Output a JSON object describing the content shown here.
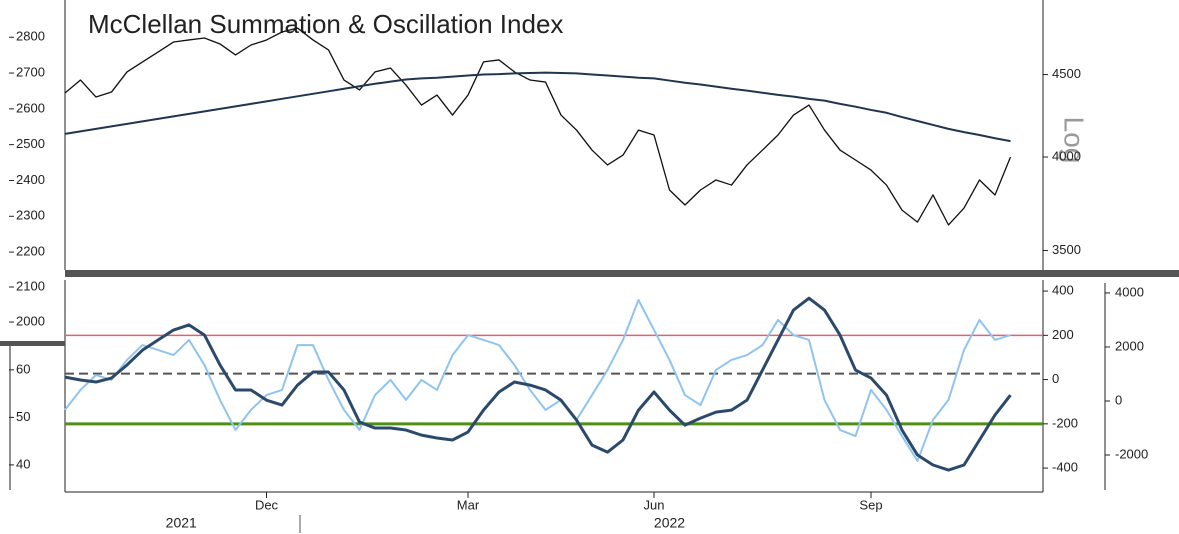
{
  "chart_data": {
    "type": "line",
    "title": "McClellan Summation & Oscillation Index",
    "categories": [
      null,
      null,
      null,
      null,
      null,
      null,
      null,
      null,
      null,
      null,
      null,
      null,
      null,
      "Dec",
      null,
      null,
      null,
      null,
      null,
      null,
      null,
      null,
      null,
      null,
      null,
      null,
      "Mar",
      null,
      null,
      null,
      null,
      null,
      null,
      null,
      null,
      null,
      null,
      null,
      "Jun",
      null,
      null,
      null,
      null,
      null,
      null,
      null,
      null,
      null,
      null,
      null,
      null,
      null,
      "Sep",
      null,
      null,
      null,
      null,
      null,
      null,
      null,
      null,
      null,
      null,
      null
    ],
    "year_labels": [
      "2021",
      "2022"
    ],
    "panels": [
      {
        "ylim": [
          2150,
          2890
        ],
        "yticks": [
          2200,
          2300,
          2400,
          2500,
          2600,
          2700,
          2800
        ],
        "y2lim": [
          3404,
          4970
        ],
        "y2ticks": [
          3500,
          4000,
          4500
        ],
        "y2log": true,
        "scale_label": "Log",
        "series": [
          {
            "color": "#111111",
            "axis": "y2",
            "values": [
              4383,
              4465,
              4358,
              4389,
              4517,
              4582,
              4647,
              4714,
              4728,
              4741,
              4701,
              4628,
              4694,
              4728,
              4782,
              4809,
              4728,
              4661,
              4465,
              4402,
              4517,
              4542,
              4433,
              4308,
              4370,
              4247,
              4370,
              4582,
              4595,
              4517,
              4465,
              4452,
              4247,
              4157,
              4040,
              3955,
              4011,
              4157,
              4128,
              3816,
              3735,
              3816,
              3871,
              3843,
              3955,
              4040,
              4128,
              4247,
              4308,
              4157,
              4040,
              3983,
              3926,
              3843,
              3708,
              3645,
              3789,
              3630,
              3719,
              3871,
              3789,
              4000,
              null,
              null
            ]
          },
          {
            "color": "#1f3550",
            "axis": "y",
            "values": [
              2530,
              2537,
              2544,
              2551,
              2558,
              2565,
              2572,
              2579,
              2586,
              2593,
              2600,
              2607,
              2614,
              2621,
              2628,
              2635,
              2642,
              2649,
              2656,
              2663,
              2670,
              2676,
              2682,
              2685,
              2687,
              2690,
              2693,
              2696,
              2697,
              2699,
              2700,
              2701,
              2700,
              2699,
              2696,
              2693,
              2690,
              2687,
              2685,
              2679,
              2673,
              2668,
              2662,
              2656,
              2651,
              2645,
              2639,
              2634,
              2628,
              2623,
              2614,
              2606,
              2597,
              2589,
              2577,
              2566,
              2555,
              2544,
              2535,
              2527,
              2518,
              2510,
              null,
              null
            ]
          }
        ]
      },
      {
        "y0lim": [
          1943,
          2120
        ],
        "y0ticks": [
          2000,
          2100
        ],
        "ylim": [
          34.3,
          78.9
        ],
        "yticks": [
          40,
          50,
          60
        ],
        "y2lim": [
          -508,
          450
        ],
        "y2ticks": [
          -400,
          -200,
          0,
          200,
          400
        ],
        "y3lim": [
          -3370,
          4480
        ],
        "y3ticks": [
          -2000,
          0,
          2000,
          4000
        ],
        "hlines": [
          {
            "value": 200,
            "axis": "y2",
            "color": "#e0607a",
            "width": 1.5
          },
          {
            "value": 27,
            "axis": "y2",
            "color": "#555555",
            "width": 2,
            "dash": true
          },
          {
            "value": -200,
            "axis": "y2",
            "color": "#4f8f16",
            "width": 3
          }
        ],
        "series": [
          {
            "color": "#8fc4f0",
            "axis": "y3",
            "values": [
              -330,
              410,
              960,
              780,
              1520,
              2070,
              1890,
              1700,
              2260,
              1330,
              40,
              -1070,
              -330,
              220,
              410,
              2070,
              2070,
              780,
              -330,
              -1070,
              220,
              780,
              40,
              780,
              410,
              1700,
              2440,
              2260,
              2070,
              1330,
              410,
              -330,
              40,
              -700,
              220,
              1150,
              2260,
              3740,
              2630,
              1520,
              220,
              -150,
              1150,
              1520,
              1700,
              2070,
              3000,
              2440,
              2260,
              40,
              -1070,
              -1300,
              410,
              -330,
              -1300,
              -2220,
              -700,
              40,
              1890,
              3000,
              2260,
              2440,
              null,
              null
            ]
          },
          {
            "color": "#2b4a6b",
            "axis": "y2",
            "width": 3,
            "values": [
              11,
              -2,
              -11,
              7,
              66,
              133,
              179,
              224,
              247,
              201,
              66,
              -47,
              -47,
              -93,
              -115,
              -25,
              34,
              34,
              -47,
              -192,
              -219,
              -219,
              -228,
              -251,
              -264,
              -273,
              -237,
              -138,
              -56,
              -11,
              -25,
              -47,
              -93,
              -183,
              -296,
              -328,
              -273,
              -138,
              -56,
              -138,
              -206,
              -174,
              -147,
              -138,
              -93,
              43,
              179,
              314,
              368,
              314,
              201,
              43,
              7,
              -70,
              -228,
              -341,
              -386,
              -409,
              -386,
              -273,
              -160,
              -70,
              null,
              null
            ]
          }
        ]
      }
    ]
  }
}
